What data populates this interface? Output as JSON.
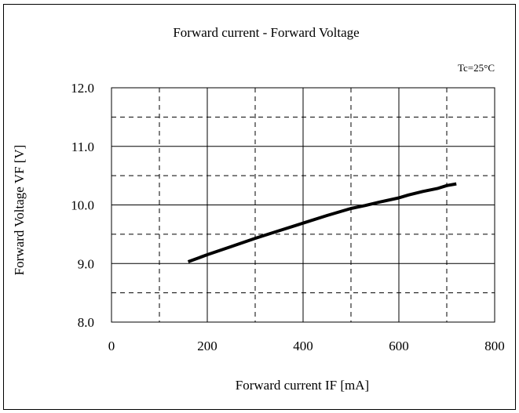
{
  "chart_data": {
    "type": "line",
    "title": "Forward current  -  Forward Voltage",
    "annotation": "Tc=25°C",
    "xlabel": "Forward current  IF [mA]",
    "ylabel": "Forward Voltage  VF [V]",
    "xlim": [
      0,
      800
    ],
    "ylim": [
      8.0,
      12.0
    ],
    "x_ticks": [
      "0",
      "200",
      "400",
      "600",
      "800"
    ],
    "y_ticks": [
      "8.0",
      "9.0",
      "10.0",
      "11.0",
      "12.0"
    ],
    "grid": true,
    "grid_style": "solid at major ticks, dashed at half intervals",
    "series": [
      {
        "x": [
          160,
          200,
          250,
          300,
          350,
          400,
          450,
          500,
          530,
          560,
          600,
          620,
          650,
          680,
          700,
          720
        ],
        "y": [
          9.03,
          9.15,
          9.29,
          9.43,
          9.56,
          9.69,
          9.82,
          9.94,
          9.99,
          10.05,
          10.12,
          10.17,
          10.23,
          10.28,
          10.33,
          10.36
        ],
        "color": "#000000"
      }
    ]
  }
}
